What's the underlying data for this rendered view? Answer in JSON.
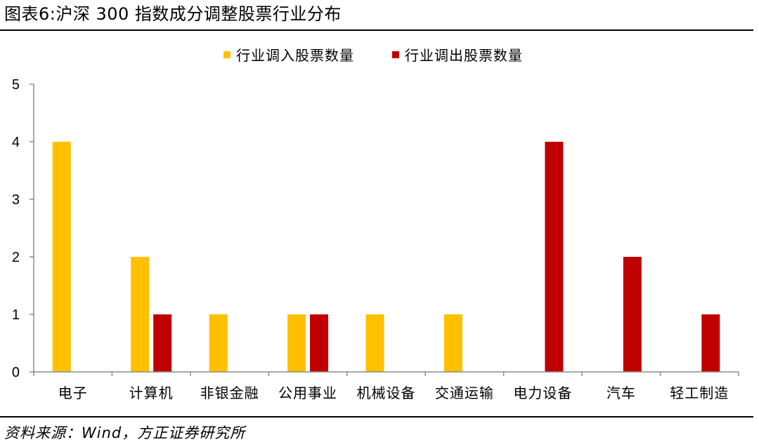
{
  "header": {
    "title": "图表6:沪深 300 指数成分调整股票行业分布"
  },
  "footer": {
    "source": "资料来源：Wind，方正证券研究所"
  },
  "colors": {
    "in": "#FFC000",
    "out": "#C00000",
    "axis": "#8c8c8c",
    "text": "#000000"
  },
  "chart_data": {
    "type": "bar",
    "categories": [
      "电子",
      "计算机",
      "非银金融",
      "公用事业",
      "机械设备",
      "交通运输",
      "电力设备",
      "汽车",
      "轻工制造"
    ],
    "series": [
      {
        "name": "行业调入股票数量",
        "values": [
          4,
          2,
          1,
          1,
          1,
          1,
          0,
          0,
          0
        ]
      },
      {
        "name": "行业调出股票数量",
        "values": [
          0,
          1,
          0,
          1,
          0,
          0,
          4,
          2,
          1
        ]
      }
    ],
    "ylim": [
      0,
      5
    ],
    "yticks": [
      0,
      1,
      2,
      3,
      4,
      5
    ],
    "grid": false,
    "legend": "top"
  }
}
